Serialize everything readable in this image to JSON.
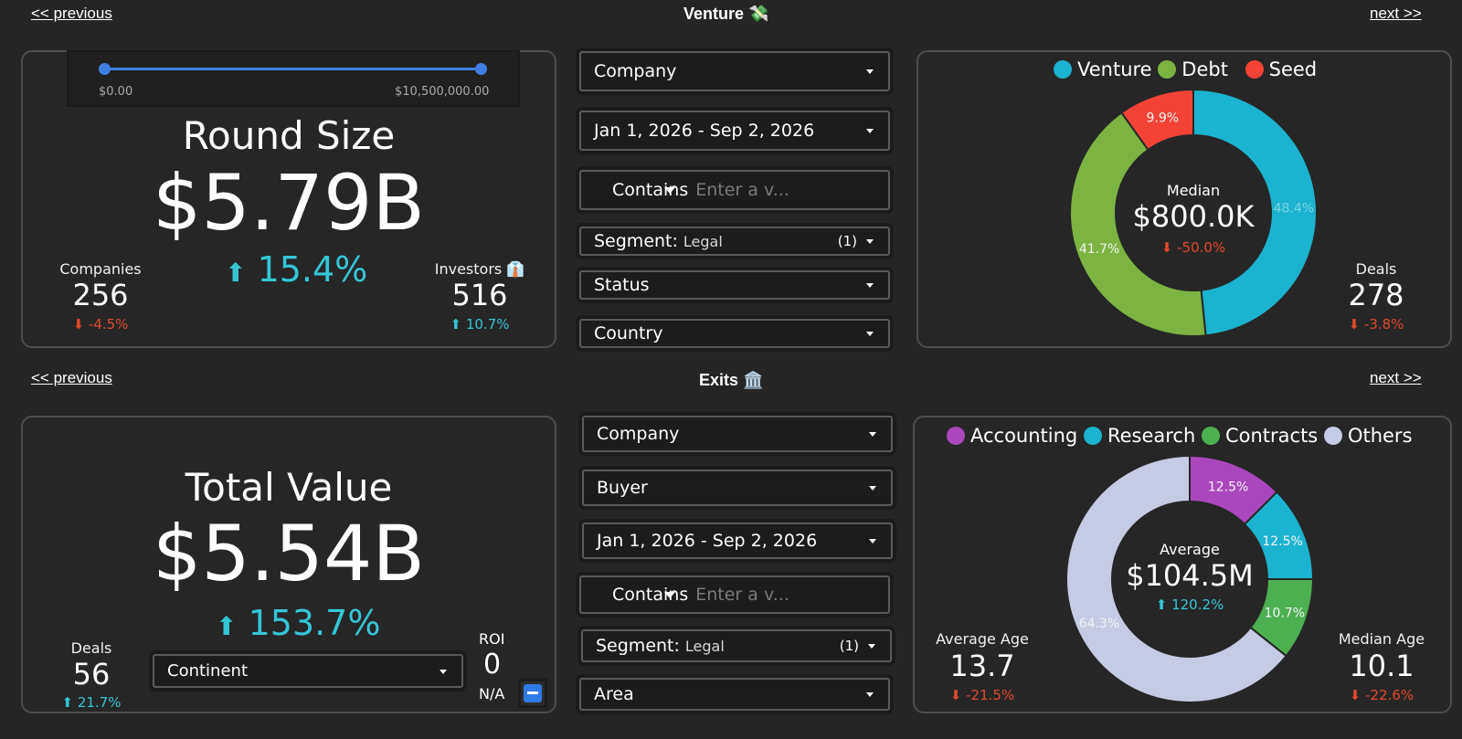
{
  "nav": {
    "previous": "<< previous",
    "next": ">>",
    "next_label": "next >>"
  },
  "venture": {
    "title": "Venture 💸",
    "slider": {
      "min_label": "$0.00",
      "max_label": "$10,500,000.00"
    },
    "round_size": {
      "label": "Round Size",
      "value": "$5.79B",
      "change": "15.4%"
    },
    "companies": {
      "label": "Companies",
      "value": "256",
      "change": "-4.5%"
    },
    "investors": {
      "label": "Investors 👔",
      "value": "516",
      "change": "10.7%"
    },
    "filters": {
      "company": "Company",
      "date_range": "Jan 1, 2026 - Sep 2, 2026",
      "contains": "Contains",
      "contains_placeholder": "Enter a v...",
      "segment_label": "Segment:",
      "segment_value": "Legal",
      "segment_count": "(1)",
      "status": "Status",
      "country": "Country"
    },
    "donut_center": {
      "label": "Median",
      "value": "$800.0K",
      "change": "-50.0%"
    },
    "deals": {
      "label": "Deals",
      "value": "278",
      "change": "-3.8%"
    }
  },
  "exits": {
    "title": "Exits 🏛️",
    "total_value": {
      "label": "Total Value",
      "value": "$5.54B",
      "change": "153.7%"
    },
    "deals": {
      "label": "Deals",
      "value": "56",
      "change": "21.7%"
    },
    "continent": "Continent",
    "roi": {
      "label": "ROI",
      "value": "0",
      "na": "N/A"
    },
    "filters": {
      "company": "Company",
      "buyer": "Buyer",
      "date_range": "Jan 1, 2026 - Sep 2, 2026",
      "contains": "Contains",
      "contains_placeholder": "Enter a v...",
      "segment_label": "Segment:",
      "segment_value": "Legal",
      "segment_count": "(1)",
      "area": "Area"
    },
    "donut_center": {
      "label": "Average",
      "value": "$104.5M",
      "change": "120.2%"
    },
    "average_age": {
      "label": "Average Age",
      "value": "13.7",
      "change": "-21.5%"
    },
    "median_age": {
      "label": "Median Age",
      "value": "10.1",
      "change": "-22.6%"
    }
  },
  "colors": {
    "venture": "#1bb3cf",
    "debt": "#7cb342",
    "seed": "#f44336",
    "accounting": "#ab47bc",
    "research": "#1bb3cf",
    "contracts": "#4caf50",
    "others": "#c5cbe3",
    "up": "#35c6d6",
    "down": "#e2492e"
  },
  "chart_data": [
    {
      "type": "pie",
      "series": [
        {
          "name": "Venture",
          "value": 48.4,
          "label": "48.4%",
          "color": "#1bb3cf"
        },
        {
          "name": "Debt",
          "value": 41.7,
          "label": "41.7%",
          "color": "#7cb342"
        },
        {
          "name": "Seed",
          "value": 9.9,
          "label": "9.9%",
          "color": "#f44336"
        }
      ],
      "legend": "top"
    },
    {
      "type": "pie",
      "series": [
        {
          "name": "Accounting",
          "value": 12.5,
          "label": "12.5%",
          "color": "#ab47bc"
        },
        {
          "name": "Research",
          "value": 12.5,
          "label": "12.5%",
          "color": "#1bb3cf"
        },
        {
          "name": "Contracts",
          "value": 10.7,
          "label": "10.7%",
          "color": "#4caf50"
        },
        {
          "name": "Others",
          "value": 64.3,
          "label": "64.3%",
          "color": "#c5cbe3"
        }
      ],
      "legend": "top"
    }
  ]
}
